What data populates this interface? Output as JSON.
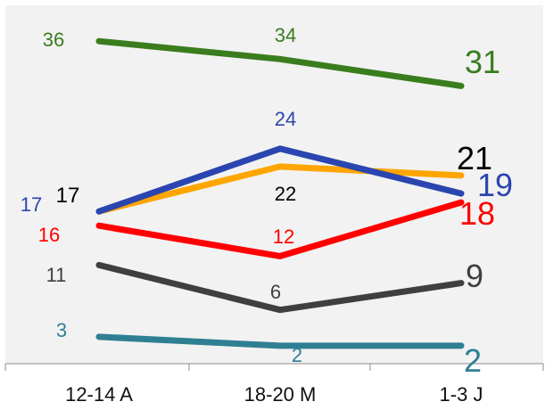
{
  "chart_data": {
    "type": "line",
    "categories": [
      "12-14 A",
      "18-20 M",
      "1-3 J"
    ],
    "ylim": [
      0,
      40
    ],
    "grid": false,
    "legend": "none",
    "series": [
      {
        "values": [
          36,
          34,
          31
        ],
        "color": "#3a7d1e"
      },
      {
        "values": [
          17,
          24,
          19
        ],
        "color": "#2b45b0"
      },
      {
        "values": [
          17,
          22,
          21
        ],
        "color": "#ffa500"
      },
      {
        "values": [
          16,
          12,
          18
        ],
        "color": "#ff0000"
      },
      {
        "values": [
          11,
          6,
          9
        ],
        "color": "#3f3f3f"
      },
      {
        "values": [
          3,
          2,
          2
        ],
        "color": "#2f7f93"
      }
    ],
    "data_labels": [
      {
        "text": "36",
        "color": "#3a7d1e"
      },
      {
        "text": "34",
        "color": "#3a7d1e"
      },
      {
        "text": "31",
        "color": "#3a7d1e"
      },
      {
        "text": "17",
        "color": "#2b45b0"
      },
      {
        "text": "24",
        "color": "#2b45b0"
      },
      {
        "text": "19",
        "color": "#2b45b0"
      },
      {
        "text": "17",
        "color": "#000000"
      },
      {
        "text": "22",
        "color": "#000000"
      },
      {
        "text": "21",
        "color": "#000000"
      },
      {
        "text": "16",
        "color": "#ff0000"
      },
      {
        "text": "12",
        "color": "#ff0000"
      },
      {
        "text": "18",
        "color": "#ff0000"
      },
      {
        "text": "11",
        "color": "#3f3f3f"
      },
      {
        "text": "6",
        "color": "#3f3f3f"
      },
      {
        "text": "9",
        "color": "#3f3f3f"
      },
      {
        "text": "3",
        "color": "#2f7f93"
      },
      {
        "text": "2",
        "color": "#2f7f93"
      },
      {
        "text": "2",
        "color": "#2f7f93"
      }
    ]
  }
}
